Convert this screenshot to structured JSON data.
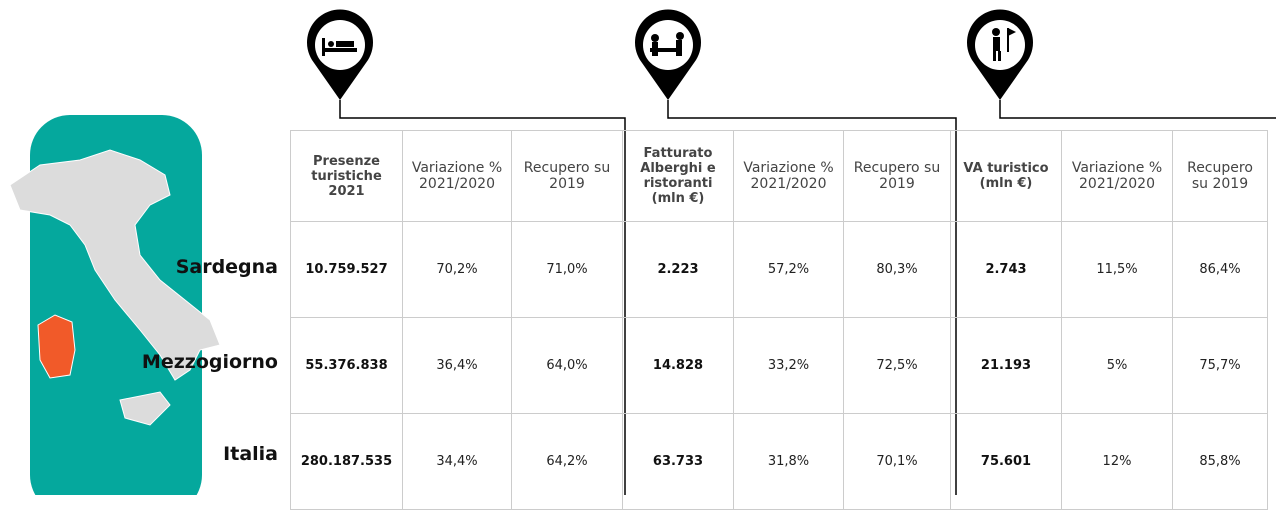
{
  "table": {
    "headers": [
      "Presenze turistiche 2021",
      "Variazione % 2021/2020",
      "Recupero su 2019",
      "Fatturato Alberghi e ristoranti (mln €)",
      "Variazione % 2021/2020",
      "Recupero su 2019",
      "VA turistico (mln €)",
      "Variazione % 2021/2020",
      "Recupero su 2019"
    ],
    "rows": [
      {
        "label": "Sardegna",
        "cells": [
          "10.759.527",
          "70,2%",
          "71,0%",
          "2.223",
          "57,2%",
          "80,3%",
          "2.743",
          "11,5%",
          "86,4%"
        ]
      },
      {
        "label": "Mezzogiorno",
        "cells": [
          "55.376.838",
          "36,4%",
          "64,0%",
          "14.828",
          "33,2%",
          "72,5%",
          "21.193",
          "5%",
          "75,7%"
        ]
      },
      {
        "label": "Italia",
        "cells": [
          "280.187.535",
          "34,4%",
          "64,2%",
          "63.733",
          "31,8%",
          "70,1%",
          "75.601",
          "12%",
          "85,8%"
        ]
      }
    ]
  }
}
